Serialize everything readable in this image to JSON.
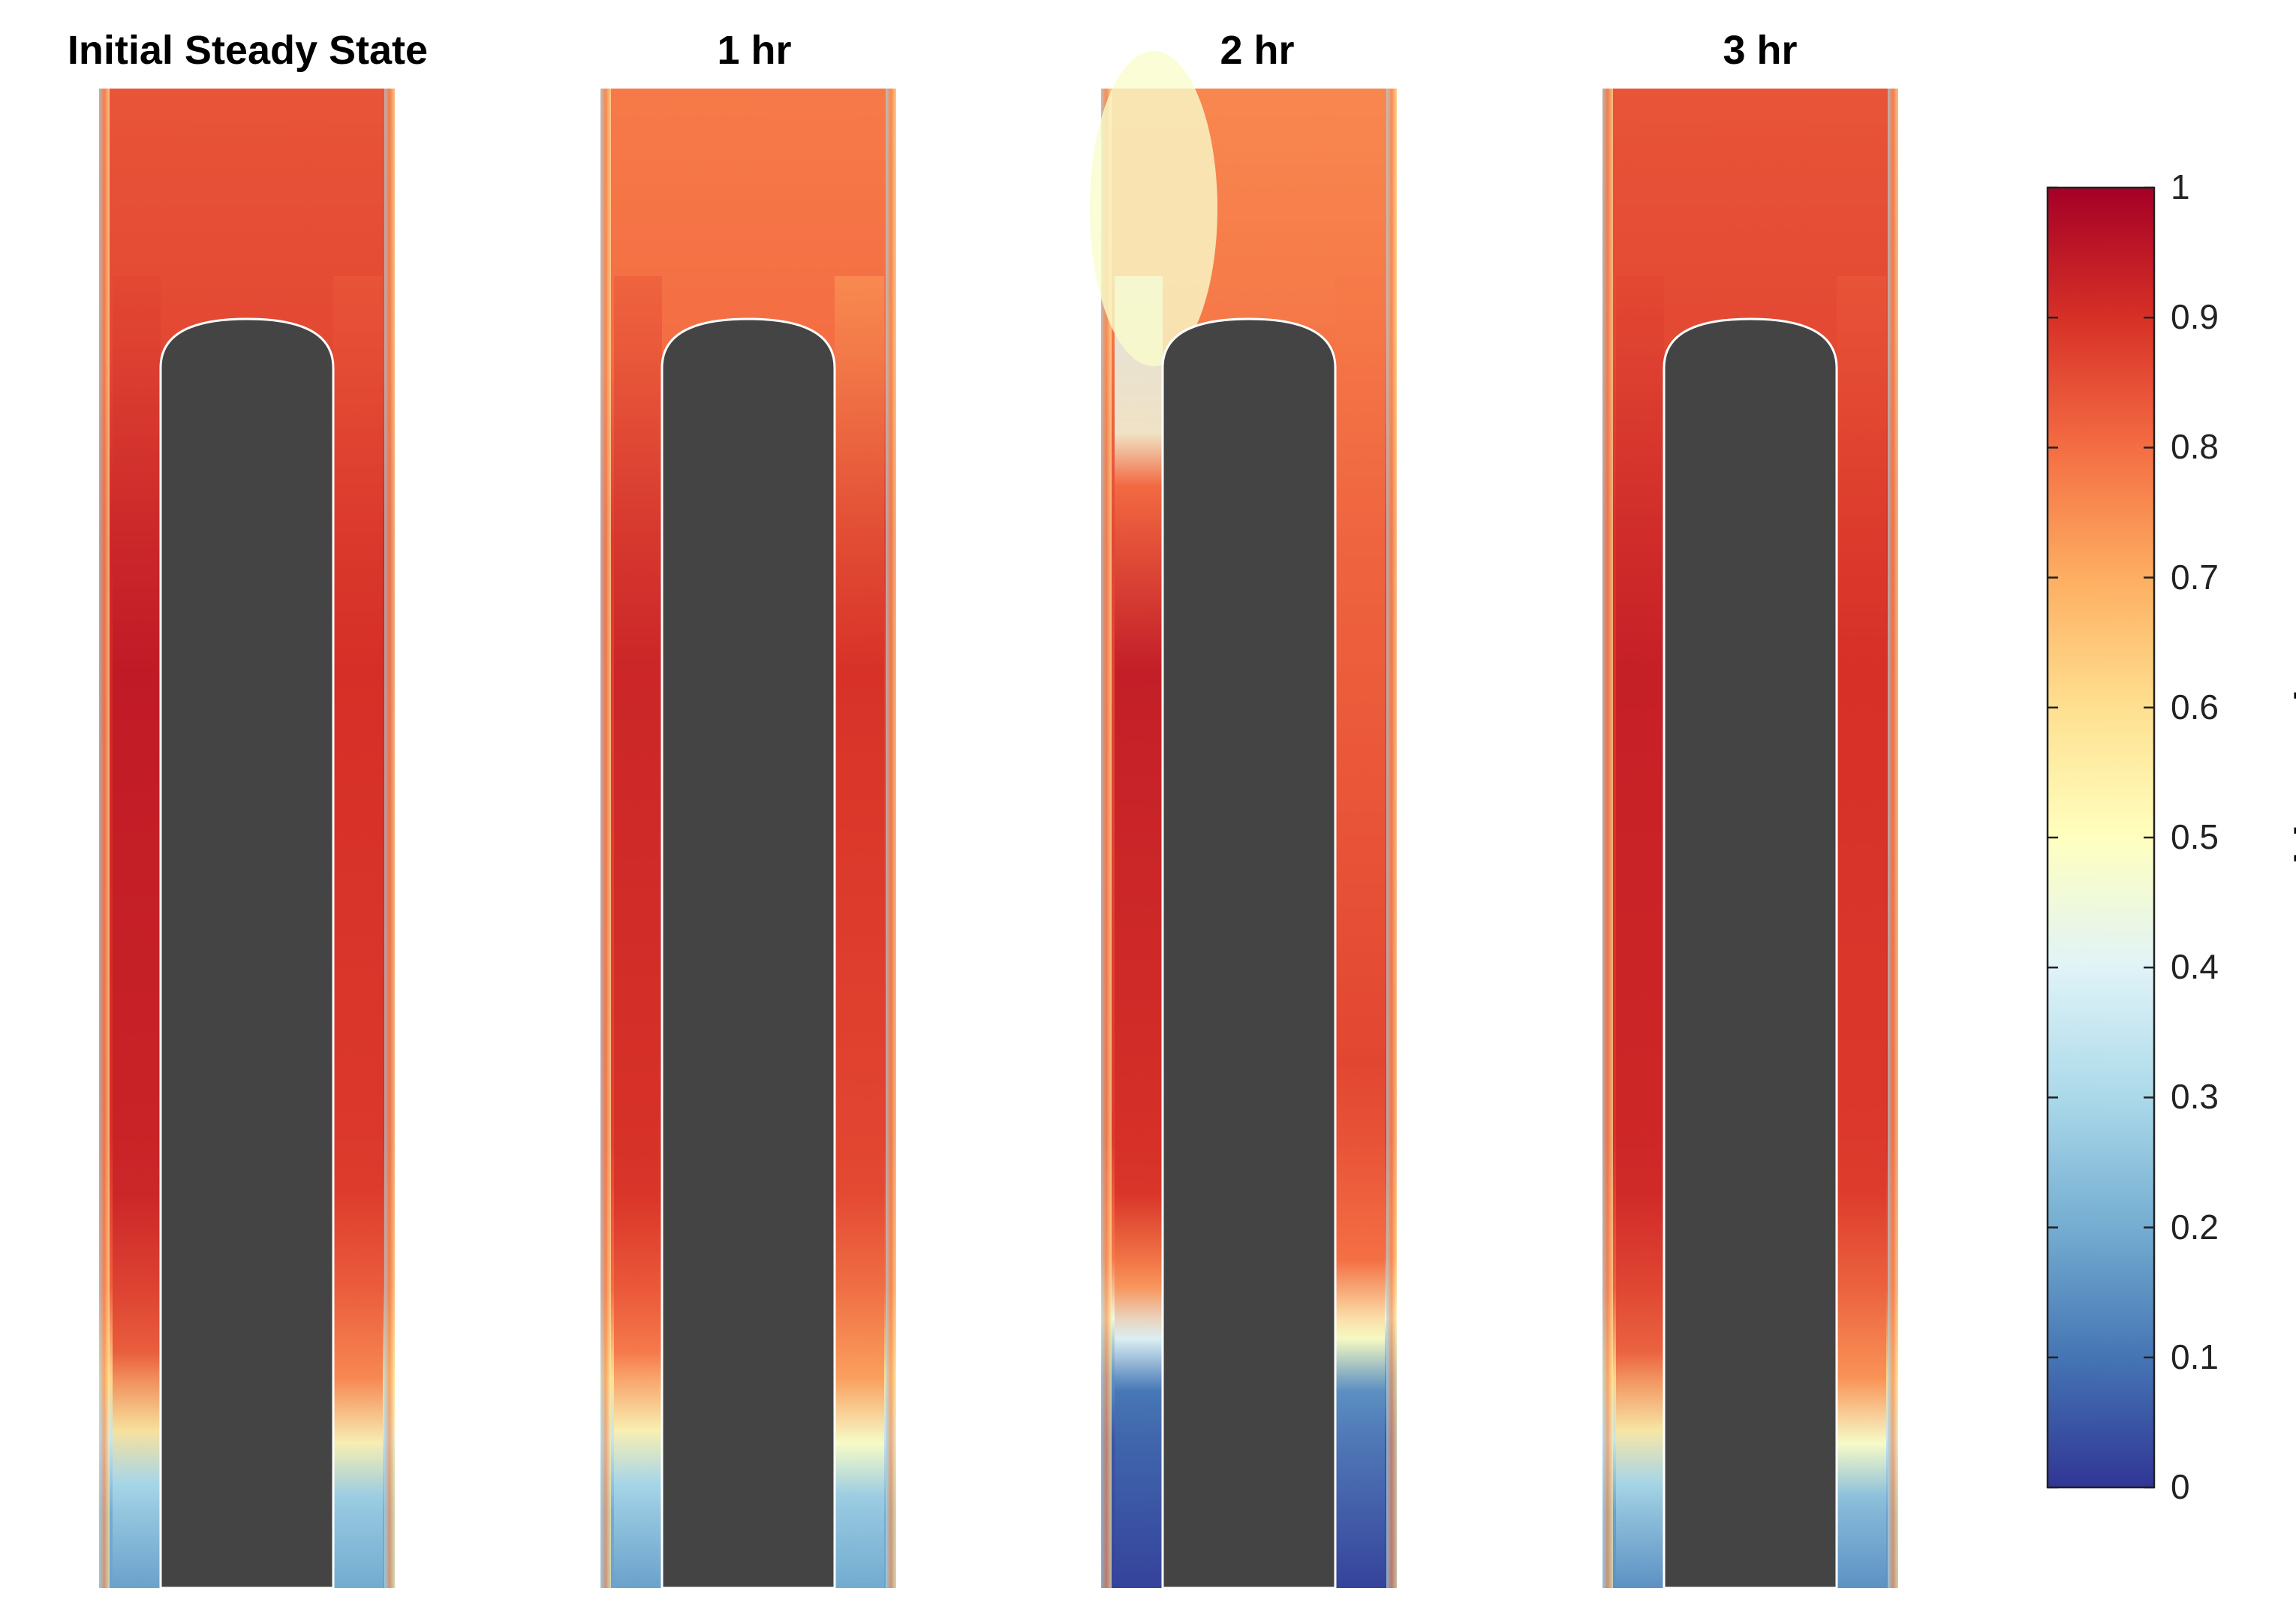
{
  "chart_data": {
    "type": "heatmap",
    "panels": [
      {
        "title": "Initial Steady State"
      },
      {
        "title": "1 hr"
      },
      {
        "title": "2 hr"
      },
      {
        "title": "3 hr"
      }
    ],
    "colorbar": {
      "label": "Void Fraction",
      "range": [
        0,
        1
      ],
      "ticks": [
        "0",
        "0.1",
        "0.2",
        "0.3",
        "0.4",
        "0.5",
        "0.6",
        "0.7",
        "0.8",
        "0.9",
        "1"
      ],
      "colormap": "RdYlBu reversed",
      "colors": [
        "#313695",
        "#4575b4",
        "#74add1",
        "#abd9e9",
        "#e0f3f8",
        "#ffffbf",
        "#fee090",
        "#fdae61",
        "#f46d43",
        "#d73027",
        "#a50026"
      ]
    },
    "obstacle_color": "#444444"
  }
}
